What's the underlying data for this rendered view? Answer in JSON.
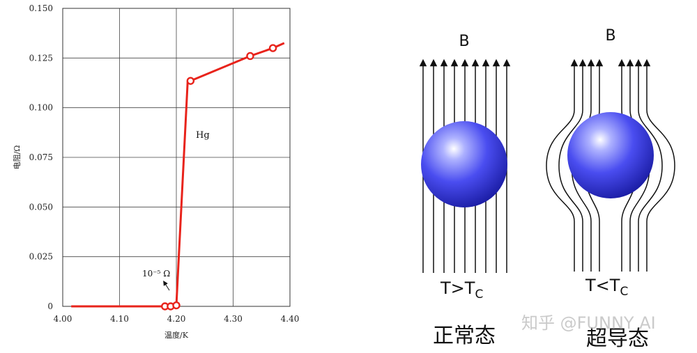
{
  "chart_data": {
    "type": "line",
    "title": "",
    "xlabel": "温度/K",
    "ylabel": "电阻/Ω",
    "xlim": [
      4.0,
      4.4
    ],
    "ylim": [
      0,
      0.15
    ],
    "grid": true,
    "x_ticks": [
      "4.00",
      "4.10",
      "4.20",
      "4.30",
      "4.40"
    ],
    "y_ticks": [
      "0",
      "0.025",
      "0.050",
      "0.075",
      "0.100",
      "0.125",
      "0.150"
    ],
    "color": "#e8231b",
    "series": [
      {
        "name": "Hg",
        "x": [
          4.015,
          4.18,
          4.19,
          4.2,
          4.22,
          4.225,
          4.33,
          4.37,
          4.39
        ],
        "y": [
          0,
          0,
          0,
          0.0005,
          0.1135,
          0.1135,
          0.126,
          0.13,
          0.1325
        ]
      }
    ],
    "markers": {
      "x": [
        4.18,
        4.19,
        4.2,
        4.225,
        4.33,
        4.37
      ],
      "y": [
        0,
        0,
        0.0005,
        0.1135,
        0.126,
        0.13
      ]
    },
    "annotations": [
      {
        "text": "Hg",
        "x": 4.235,
        "y": 0.085
      },
      {
        "text": "10⁻⁵ Ω",
        "x": 4.17,
        "y": 0.018
      }
    ]
  },
  "diagram": {
    "field_label_left": "B",
    "field_label_right": "B",
    "cond_left": "T>T",
    "cond_left_sub": "C",
    "cond_right": "T<T",
    "cond_right_sub": "C",
    "caption_left": "正常态",
    "caption_right": "超导态",
    "sphere_color": "#3a3ae0"
  },
  "watermark": "知乎 @FUNNY AI"
}
